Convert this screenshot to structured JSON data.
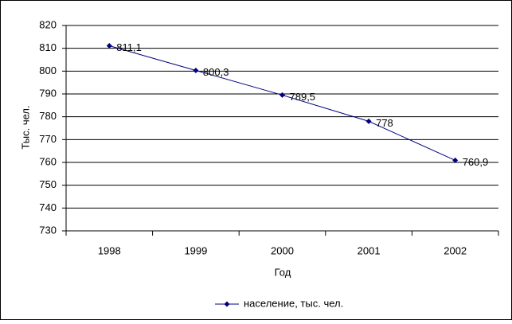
{
  "chart_data": {
    "type": "line",
    "categories": [
      "1998",
      "1999",
      "2000",
      "2001",
      "2002"
    ],
    "series": [
      {
        "name": "население, тыс. чел.",
        "color": "#000080",
        "values": [
          811.1,
          800.3,
          789.5,
          778,
          760.9
        ],
        "value_labels": [
          "811,1",
          "800,3",
          "789,5",
          "778",
          "760,9"
        ]
      }
    ],
    "x_label": "Год",
    "y_label": "Тыс. чел.",
    "ylim": [
      730,
      820
    ],
    "yticks": [
      730,
      740,
      750,
      760,
      770,
      780,
      790,
      800,
      810,
      820
    ],
    "grid": true,
    "legend": "bottom"
  }
}
